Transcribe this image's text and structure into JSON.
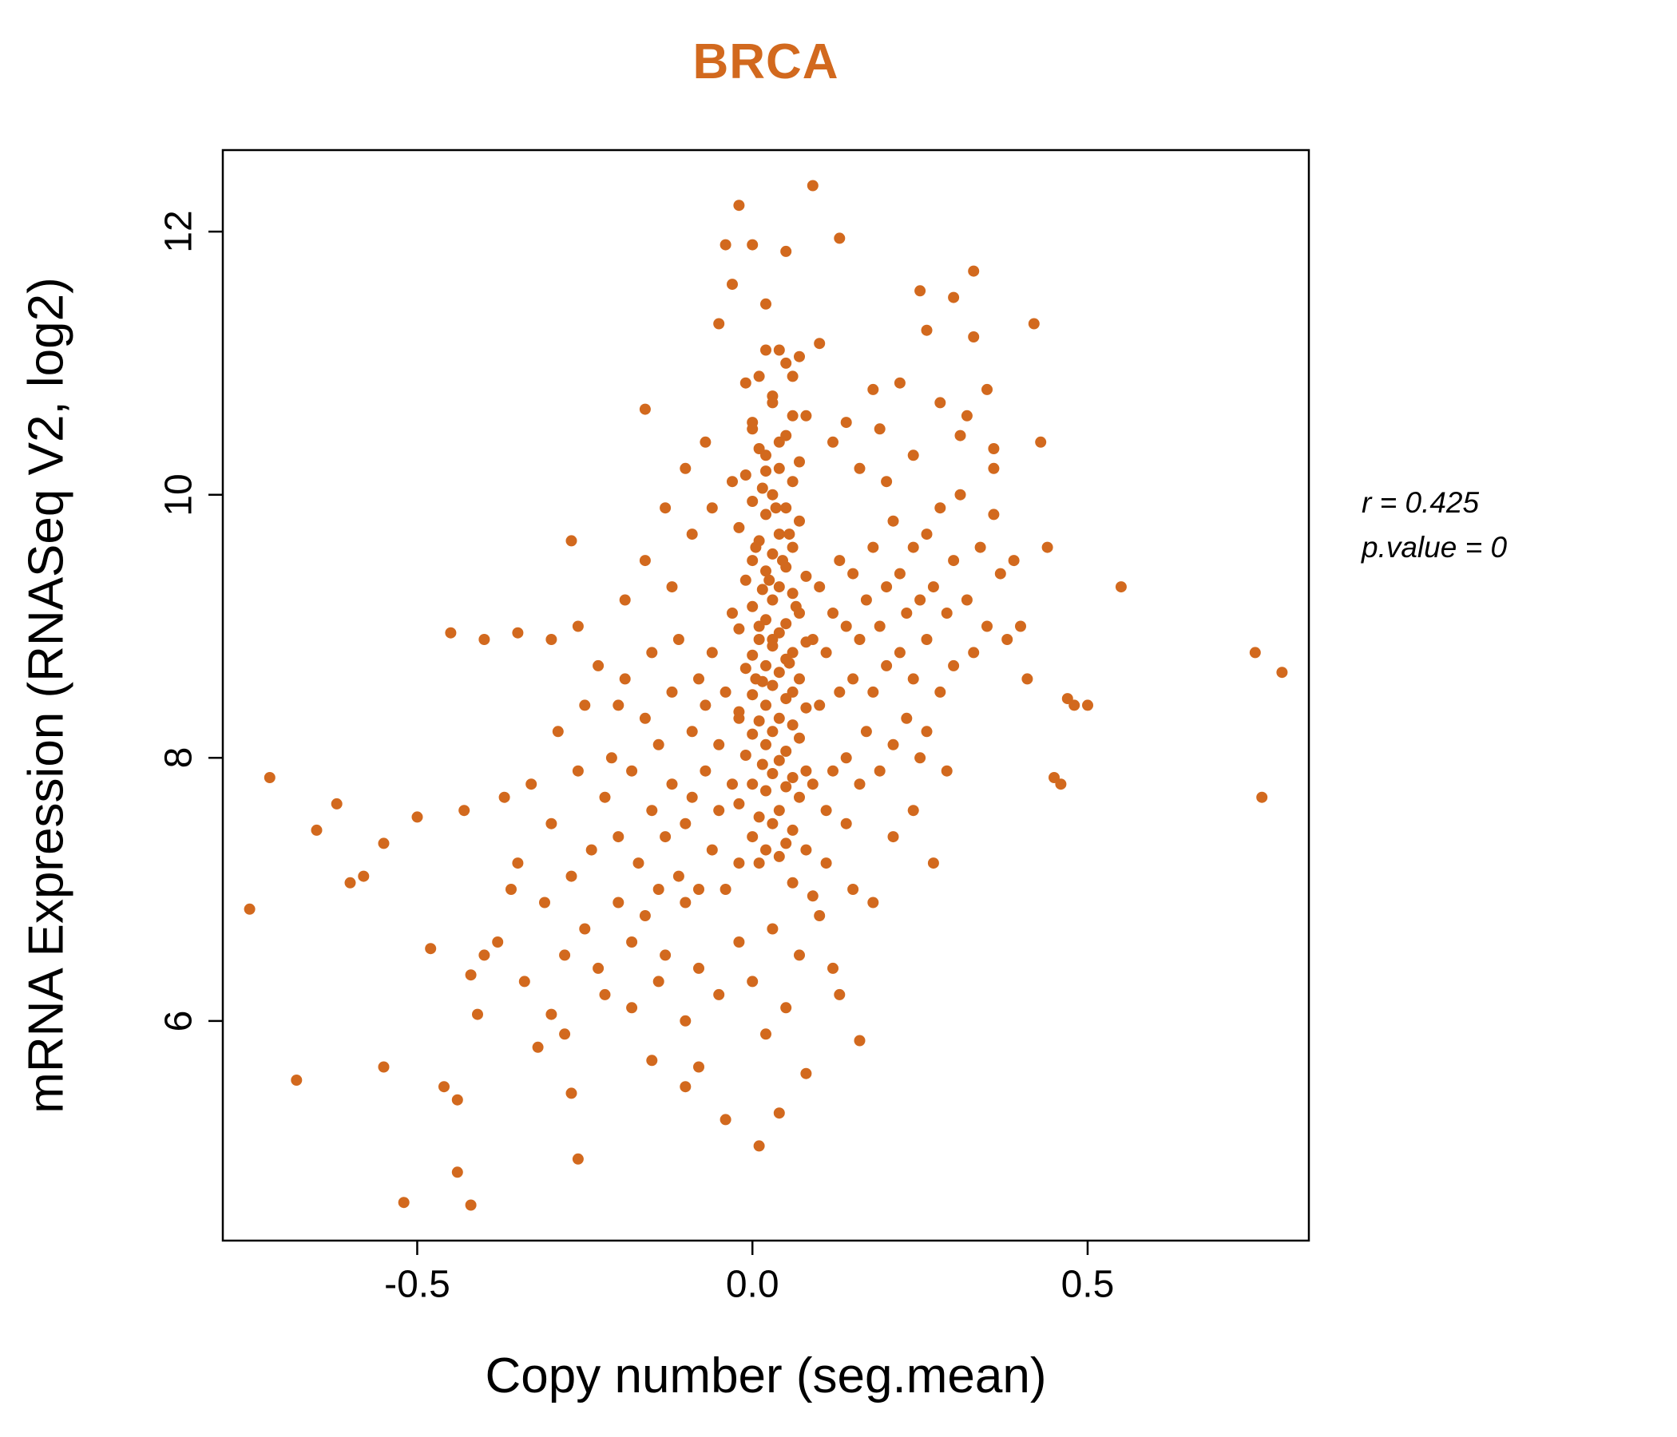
{
  "title": "BRCA",
  "annotation": {
    "r_line": "r = 0.425",
    "p_line": "p.value = 0"
  },
  "colors": {
    "title": "#D2691E",
    "points": "#D2691E",
    "axis": "#000000"
  },
  "chart_data": {
    "type": "scatter",
    "title": "BRCA",
    "xlabel": "Copy number (seg.mean)",
    "ylabel": "mRNA Expression (RNASeq V2, log2)",
    "xlim": [
      -0.79,
      0.83
    ],
    "ylim": [
      4.33,
      12.62
    ],
    "x_ticks": [
      -0.5,
      0.0,
      0.5
    ],
    "x_tick_labels": [
      "-0.5",
      "0.0",
      "0.5"
    ],
    "y_ticks": [
      6,
      8,
      10,
      12
    ],
    "y_tick_labels": [
      "6",
      "8",
      "10",
      "12"
    ],
    "grid": false,
    "legend": false,
    "stats": {
      "r": 0.425,
      "p_value": 0
    },
    "point_color": "#D2691E",
    "points": [
      [
        0.01,
        10.9
      ],
      [
        0.03,
        10.7
      ],
      [
        0.0,
        10.5
      ],
      [
        0.05,
        10.45
      ],
      [
        0.02,
        10.3
      ],
      [
        0.04,
        10.2
      ],
      [
        -0.01,
        10.15
      ],
      [
        0.06,
        10.1
      ],
      [
        0.015,
        10.05
      ],
      [
        0.03,
        10.0
      ],
      [
        0.0,
        9.95
      ],
      [
        0.05,
        9.9
      ],
      [
        0.02,
        9.85
      ],
      [
        0.07,
        9.8
      ],
      [
        -0.02,
        9.75
      ],
      [
        0.04,
        9.7
      ],
      [
        0.01,
        9.65
      ],
      [
        0.06,
        9.6
      ],
      [
        0.03,
        9.55
      ],
      [
        0.0,
        9.5
      ],
      [
        0.05,
        9.45
      ],
      [
        0.02,
        9.42
      ],
      [
        0.08,
        9.38
      ],
      [
        -0.01,
        9.35
      ],
      [
        0.04,
        9.3
      ],
      [
        0.015,
        9.28
      ],
      [
        0.06,
        9.25
      ],
      [
        0.03,
        9.2
      ],
      [
        0.0,
        9.15
      ],
      [
        0.07,
        9.1
      ],
      [
        0.02,
        9.05
      ],
      [
        0.05,
        9.02
      ],
      [
        -0.02,
        8.98
      ],
      [
        0.04,
        8.95
      ],
      [
        0.01,
        8.9
      ],
      [
        0.08,
        8.88
      ],
      [
        0.03,
        8.85
      ],
      [
        0.06,
        8.8
      ],
      [
        0.0,
        8.78
      ],
      [
        0.05,
        8.75
      ],
      [
        0.02,
        8.7
      ],
      [
        -0.01,
        8.68
      ],
      [
        0.04,
        8.65
      ],
      [
        0.07,
        8.6
      ],
      [
        0.015,
        8.58
      ],
      [
        0.03,
        8.55
      ],
      [
        0.06,
        8.5
      ],
      [
        0.0,
        8.48
      ],
      [
        0.05,
        8.45
      ],
      [
        0.02,
        8.4
      ],
      [
        0.08,
        8.38
      ],
      [
        -0.02,
        8.35
      ],
      [
        0.04,
        8.3
      ],
      [
        0.01,
        8.28
      ],
      [
        0.06,
        8.25
      ],
      [
        0.03,
        8.2
      ],
      [
        0.0,
        8.18
      ],
      [
        0.07,
        8.15
      ],
      [
        0.02,
        8.1
      ],
      [
        0.05,
        8.05
      ],
      [
        -0.01,
        8.02
      ],
      [
        0.04,
        7.98
      ],
      [
        0.015,
        7.95
      ],
      [
        0.08,
        7.9
      ],
      [
        0.03,
        7.88
      ],
      [
        0.06,
        7.85
      ],
      [
        0.0,
        7.8
      ],
      [
        0.05,
        7.78
      ],
      [
        0.02,
        7.75
      ],
      [
        0.07,
        7.7
      ],
      [
        -0.02,
        7.65
      ],
      [
        0.04,
        7.6
      ],
      [
        0.01,
        7.55
      ],
      [
        0.03,
        7.5
      ],
      [
        0.06,
        7.45
      ],
      [
        0.0,
        7.4
      ],
      [
        0.05,
        7.35
      ],
      [
        0.02,
        7.3
      ],
      [
        0.04,
        7.25
      ],
      [
        0.01,
        7.2
      ],
      [
        0.02,
        11.1
      ],
      [
        0.05,
        11.0
      ],
      [
        -0.01,
        10.85
      ],
      [
        0.03,
        10.75
      ],
      [
        0.06,
        10.6
      ],
      [
        0.0,
        10.55
      ],
      [
        0.04,
        10.4
      ],
      [
        0.01,
        10.35
      ],
      [
        0.07,
        10.25
      ],
      [
        0.02,
        10.18
      ],
      [
        0.035,
        9.9
      ],
      [
        0.055,
        9.7
      ],
      [
        0.005,
        9.6
      ],
      [
        0.045,
        9.5
      ],
      [
        0.025,
        9.35
      ],
      [
        0.065,
        9.15
      ],
      [
        0.01,
        9.0
      ],
      [
        0.03,
        8.9
      ],
      [
        0.055,
        8.72
      ],
      [
        0.005,
        8.6
      ],
      [
        -0.35,
        7.2
      ],
      [
        -0.33,
        7.8
      ],
      [
        -0.31,
        6.9
      ],
      [
        -0.3,
        7.5
      ],
      [
        -0.29,
        8.2
      ],
      [
        -0.28,
        6.5
      ],
      [
        -0.27,
        7.1
      ],
      [
        -0.26,
        7.9
      ],
      [
        -0.25,
        6.7
      ],
      [
        -0.25,
        8.4
      ],
      [
        -0.24,
        7.3
      ],
      [
        -0.23,
        6.4
      ],
      [
        -0.22,
        7.7
      ],
      [
        -0.21,
        8.0
      ],
      [
        -0.2,
        6.9
      ],
      [
        -0.2,
        7.4
      ],
      [
        -0.19,
        8.6
      ],
      [
        -0.18,
        6.6
      ],
      [
        -0.18,
        7.9
      ],
      [
        -0.17,
        7.2
      ],
      [
        -0.16,
        8.3
      ],
      [
        -0.16,
        6.8
      ],
      [
        -0.15,
        7.6
      ],
      [
        -0.15,
        8.8
      ],
      [
        -0.14,
        7.0
      ],
      [
        -0.14,
        8.1
      ],
      [
        -0.13,
        7.4
      ],
      [
        -0.13,
        6.5
      ],
      [
        -0.12,
        8.5
      ],
      [
        -0.12,
        7.8
      ],
      [
        -0.11,
        7.1
      ],
      [
        -0.11,
        8.9
      ],
      [
        -0.1,
        7.5
      ],
      [
        -0.1,
        6.9
      ],
      [
        -0.09,
        8.2
      ],
      [
        -0.09,
        7.7
      ],
      [
        -0.08,
        8.6
      ],
      [
        -0.08,
        7.0
      ],
      [
        -0.07,
        7.9
      ],
      [
        -0.07,
        8.4
      ],
      [
        -0.06,
        7.3
      ],
      [
        -0.06,
        8.8
      ],
      [
        -0.05,
        7.6
      ],
      [
        -0.05,
        8.1
      ],
      [
        -0.04,
        7.0
      ],
      [
        -0.04,
        8.5
      ],
      [
        -0.03,
        7.8
      ],
      [
        -0.03,
        9.1
      ],
      [
        -0.02,
        7.2
      ],
      [
        -0.02,
        8.3
      ],
      [
        0.09,
        8.9
      ],
      [
        0.09,
        7.8
      ],
      [
        0.1,
        8.4
      ],
      [
        0.1,
        9.3
      ],
      [
        0.11,
        7.6
      ],
      [
        0.11,
        8.8
      ],
      [
        0.12,
        9.1
      ],
      [
        0.12,
        7.9
      ],
      [
        0.13,
        8.5
      ],
      [
        0.13,
        9.5
      ],
      [
        0.14,
        8.0
      ],
      [
        0.14,
        9.0
      ],
      [
        0.15,
        8.6
      ],
      [
        0.15,
        9.4
      ],
      [
        0.16,
        7.8
      ],
      [
        0.16,
        8.9
      ],
      [
        0.17,
        9.2
      ],
      [
        0.17,
        8.2
      ],
      [
        0.18,
        9.6
      ],
      [
        0.18,
        8.5
      ],
      [
        0.19,
        9.0
      ],
      [
        0.19,
        7.9
      ],
      [
        0.2,
        8.7
      ],
      [
        0.2,
        9.3
      ],
      [
        0.21,
        8.1
      ],
      [
        0.21,
        9.8
      ],
      [
        0.22,
        8.8
      ],
      [
        0.22,
        9.4
      ],
      [
        0.23,
        8.3
      ],
      [
        0.23,
        9.1
      ],
      [
        0.24,
        9.6
      ],
      [
        0.24,
        8.6
      ],
      [
        0.25,
        9.2
      ],
      [
        0.25,
        8.0
      ],
      [
        0.26,
        9.7
      ],
      [
        0.26,
        8.9
      ],
      [
        0.27,
        9.3
      ],
      [
        0.28,
        8.5
      ],
      [
        0.28,
        9.9
      ],
      [
        0.29,
        9.1
      ],
      [
        0.3,
        8.7
      ],
      [
        0.3,
        9.5
      ],
      [
        0.31,
        10.0
      ],
      [
        0.32,
        9.2
      ],
      [
        0.33,
        8.8
      ],
      [
        0.34,
        9.6
      ],
      [
        0.35,
        9.0
      ],
      [
        0.36,
        10.2
      ],
      [
        0.37,
        9.4
      ],
      [
        0.38,
        8.9
      ],
      [
        -0.22,
        6.2
      ],
      [
        -0.18,
        6.1
      ],
      [
        -0.14,
        6.3
      ],
      [
        -0.1,
        6.0
      ],
      [
        -0.08,
        6.4
      ],
      [
        -0.05,
        6.2
      ],
      [
        -0.02,
        6.6
      ],
      [
        0.0,
        6.3
      ],
      [
        0.03,
        6.7
      ],
      [
        0.05,
        6.1
      ],
      [
        0.07,
        6.5
      ],
      [
        0.1,
        6.8
      ],
      [
        0.12,
        6.4
      ],
      [
        0.15,
        7.0
      ],
      [
        0.18,
        6.9
      ],
      [
        -0.28,
        5.9
      ],
      [
        -0.15,
        5.7
      ],
      [
        0.02,
        5.9
      ],
      [
        0.08,
        5.6
      ],
      [
        0.13,
        6.2
      ],
      [
        -0.3,
        8.9
      ],
      [
        -0.26,
        9.0
      ],
      [
        -0.23,
        8.7
      ],
      [
        -0.19,
        9.2
      ],
      [
        -0.16,
        9.5
      ],
      [
        -0.12,
        9.3
      ],
      [
        -0.09,
        9.7
      ],
      [
        -0.06,
        9.9
      ],
      [
        -0.03,
        10.1
      ],
      [
        -0.2,
        8.4
      ],
      [
        -0.34,
        6.3
      ],
      [
        -0.32,
        5.8
      ],
      [
        -0.36,
        7.0
      ],
      [
        -0.38,
        6.6
      ],
      [
        -0.37,
        7.7
      ],
      [
        0.06,
        7.05
      ],
      [
        0.08,
        7.3
      ],
      [
        0.09,
        6.95
      ],
      [
        0.11,
        7.2
      ],
      [
        0.14,
        7.5
      ],
      [
        -0.75,
        6.85
      ],
      [
        -0.72,
        7.85
      ],
      [
        -0.68,
        5.55
      ],
      [
        -0.65,
        7.45
      ],
      [
        -0.62,
        7.65
      ],
      [
        -0.6,
        7.05
      ],
      [
        -0.58,
        7.1
      ],
      [
        -0.55,
        7.35
      ],
      [
        -0.52,
        4.62
      ],
      [
        -0.55,
        5.65
      ],
      [
        -0.5,
        7.55
      ],
      [
        -0.48,
        6.55
      ],
      [
        -0.46,
        5.5
      ],
      [
        -0.45,
        8.95
      ],
      [
        -0.44,
        4.85
      ],
      [
        -0.43,
        7.6
      ],
      [
        -0.42,
        6.35
      ],
      [
        -0.42,
        4.6
      ],
      [
        -0.41,
        6.05
      ],
      [
        -0.4,
        6.5
      ],
      [
        0.4,
        9.0
      ],
      [
        0.41,
        8.6
      ],
      [
        0.42,
        11.3
      ],
      [
        0.43,
        10.4
      ],
      [
        0.44,
        9.6
      ],
      [
        0.45,
        7.85
      ],
      [
        0.46,
        7.8
      ],
      [
        0.47,
        8.45
      ],
      [
        0.48,
        8.4
      ],
      [
        0.5,
        8.4
      ],
      [
        0.55,
        9.3
      ],
      [
        0.32,
        10.6
      ],
      [
        0.35,
        10.8
      ],
      [
        0.3,
        11.5
      ],
      [
        0.33,
        11.2
      ],
      [
        0.75,
        8.8
      ],
      [
        0.79,
        8.65
      ],
      [
        0.76,
        7.7
      ],
      [
        0.36,
        9.85
      ],
      [
        0.39,
        9.5
      ],
      [
        -0.02,
        12.2
      ],
      [
        0.09,
        12.35
      ],
      [
        -0.04,
        11.9
      ],
      [
        0.0,
        11.9
      ],
      [
        0.05,
        11.85
      ],
      [
        0.13,
        11.95
      ],
      [
        -0.03,
        11.6
      ],
      [
        0.25,
        11.55
      ],
      [
        0.26,
        11.25
      ],
      [
        -0.05,
        11.3
      ],
      [
        0.02,
        11.45
      ],
      [
        0.1,
        11.15
      ],
      [
        0.33,
        11.7
      ],
      [
        -0.16,
        10.65
      ],
      [
        0.18,
        10.8
      ],
      [
        0.22,
        10.85
      ],
      [
        0.28,
        10.7
      ],
      [
        0.31,
        10.45
      ],
      [
        0.24,
        10.3
      ],
      [
        0.36,
        10.35
      ],
      [
        -0.27,
        5.45
      ],
      [
        -0.08,
        5.65
      ],
      [
        -0.04,
        5.25
      ],
      [
        0.04,
        5.3
      ],
      [
        0.16,
        5.85
      ],
      [
        -0.3,
        6.05
      ],
      [
        -0.26,
        4.95
      ],
      [
        -0.44,
        5.4
      ],
      [
        -0.1,
        5.5
      ],
      [
        0.01,
        5.05
      ],
      [
        -0.27,
        9.65
      ],
      [
        -0.35,
        8.95
      ],
      [
        -0.4,
        8.9
      ],
      [
        0.2,
        10.1
      ],
      [
        0.16,
        10.2
      ],
      [
        0.12,
        10.4
      ],
      [
        0.08,
        10.6
      ],
      [
        0.06,
        10.9
      ],
      [
        0.14,
        10.55
      ],
      [
        0.19,
        10.5
      ],
      [
        0.04,
        11.1
      ],
      [
        0.07,
        11.05
      ],
      [
        -0.07,
        10.4
      ],
      [
        -0.1,
        10.2
      ],
      [
        -0.13,
        9.9
      ],
      [
        0.26,
        8.2
      ],
      [
        0.29,
        7.9
      ],
      [
        0.24,
        7.6
      ],
      [
        0.21,
        7.4
      ],
      [
        0.27,
        7.2
      ]
    ]
  }
}
